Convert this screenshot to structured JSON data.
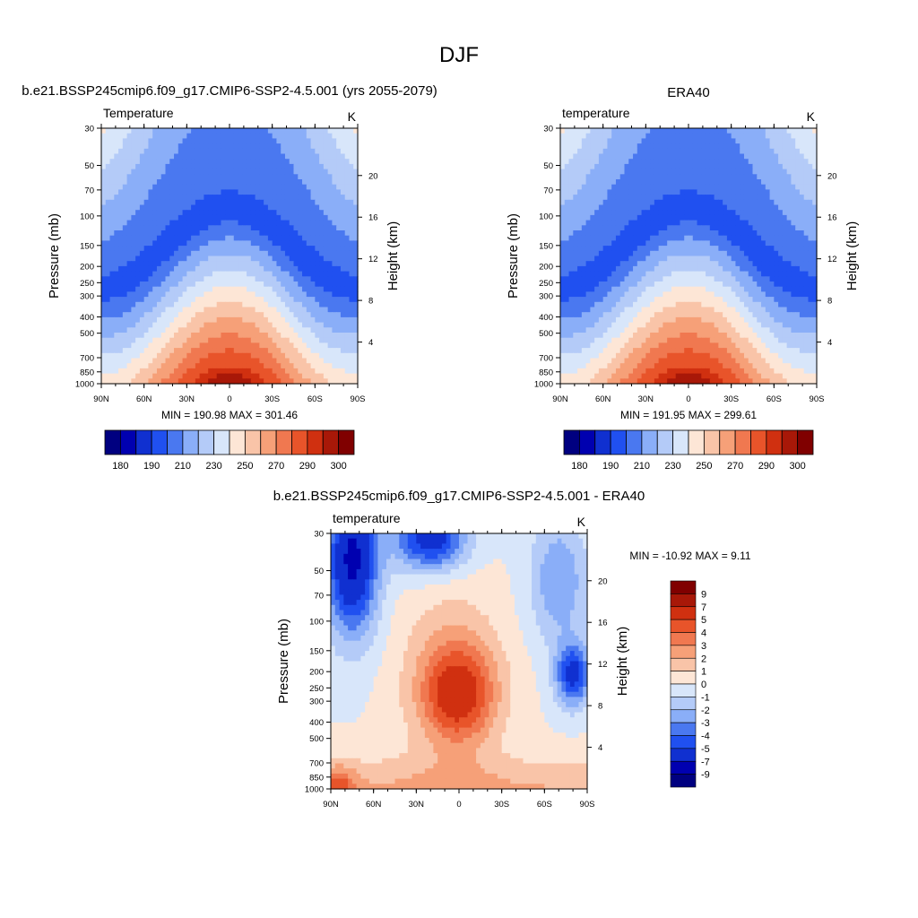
{
  "main_title": "DJF",
  "chart_data": [
    {
      "type": "heatmap",
      "title": "b.e21.BSSP245cmip6.f09_g17.CMIP6-SSP2-4.5.001 (yrs 2055-2079)",
      "subtitle_left": "Temperature",
      "units": "K",
      "xlabel": "",
      "ylabel": "Pressure (mb)",
      "y2label": "Height (km)",
      "x_ticks": [
        "90N",
        "60N",
        "30N",
        "0",
        "30S",
        "60S",
        "90S"
      ],
      "y_ticks": [
        30,
        50,
        70,
        100,
        150,
        200,
        250,
        300,
        400,
        500,
        700,
        850,
        1000
      ],
      "y2_ticks": [
        20,
        16,
        12,
        8,
        4
      ],
      "y_scale": "log",
      "ylim": [
        1000,
        30
      ],
      "xlim": [
        90,
        -90
      ],
      "summary": "MIN = 190.98  MAX = 301.46",
      "min": 190.98,
      "max": 301.46,
      "levels": [
        180,
        185,
        190,
        200,
        210,
        220,
        230,
        240,
        250,
        260,
        270,
        280,
        290,
        295,
        300
      ],
      "colorbar_labels": [
        "180",
        "190",
        "210",
        "230",
        "250",
        "270",
        "290",
        "300"
      ],
      "grid": false,
      "legend": "colorbar-bottom"
    },
    {
      "type": "heatmap",
      "title": "ERA40",
      "subtitle_left": "temperature",
      "units": "K",
      "xlabel": "",
      "ylabel": "Pressure (mb)",
      "y2label": "Height (km)",
      "x_ticks": [
        "90N",
        "60N",
        "30N",
        "0",
        "30S",
        "60S",
        "90S"
      ],
      "y_ticks": [
        30,
        50,
        70,
        100,
        150,
        200,
        250,
        300,
        400,
        500,
        700,
        850,
        1000
      ],
      "y2_ticks": [
        20,
        16,
        12,
        8,
        4
      ],
      "y_scale": "log",
      "ylim": [
        1000,
        30
      ],
      "xlim": [
        90,
        -90
      ],
      "summary": "MIN = 191.95  MAX = 299.61",
      "min": 191.95,
      "max": 299.61,
      "levels": [
        180,
        185,
        190,
        200,
        210,
        220,
        230,
        240,
        250,
        260,
        270,
        280,
        290,
        295,
        300
      ],
      "colorbar_labels": [
        "180",
        "190",
        "210",
        "230",
        "250",
        "270",
        "290",
        "300"
      ],
      "grid": false,
      "legend": "colorbar-bottom"
    },
    {
      "type": "heatmap",
      "title": "b.e21.BSSP245cmip6.f09_g17.CMIP6-SSP2-4.5.001 - ERA40",
      "subtitle_left": "temperature",
      "units": "K",
      "xlabel": "",
      "ylabel": "Pressure (mb)",
      "y2label": "Height (km)",
      "x_ticks": [
        "90N",
        "60N",
        "30N",
        "0",
        "30S",
        "60S",
        "90S"
      ],
      "y_ticks": [
        30,
        50,
        70,
        100,
        150,
        200,
        250,
        300,
        400,
        500,
        700,
        850,
        1000
      ],
      "y2_ticks": [
        20,
        16,
        12,
        8,
        4
      ],
      "y_scale": "log",
      "ylim": [
        1000,
        30
      ],
      "xlim": [
        90,
        -90
      ],
      "summary": "MIN = -10.92  MAX =   9.11",
      "min": -10.92,
      "max": 9.11,
      "levels": [
        -9,
        -7,
        -5,
        -4,
        -3,
        -2,
        -1,
        0,
        1,
        2,
        3,
        4,
        5,
        7,
        9
      ],
      "colorbar_labels": [
        "9",
        "7",
        "5",
        "4",
        "3",
        "2",
        "1",
        "0",
        "-1",
        "-2",
        "-3",
        "-4",
        "-5",
        "-7",
        "-9"
      ],
      "grid": false,
      "legend": "colorbar-right"
    }
  ],
  "colors": {
    "scale": [
      "#000080",
      "#0000b0",
      "#1030d0",
      "#2050f0",
      "#4a78f0",
      "#8aaef8",
      "#b4cbf8",
      "#d8e6fa",
      "#fde6d6",
      "#f9c4a8",
      "#f6a078",
      "#f07850",
      "#e8542a",
      "#d03010",
      "#a81808",
      "#800000"
    ]
  }
}
